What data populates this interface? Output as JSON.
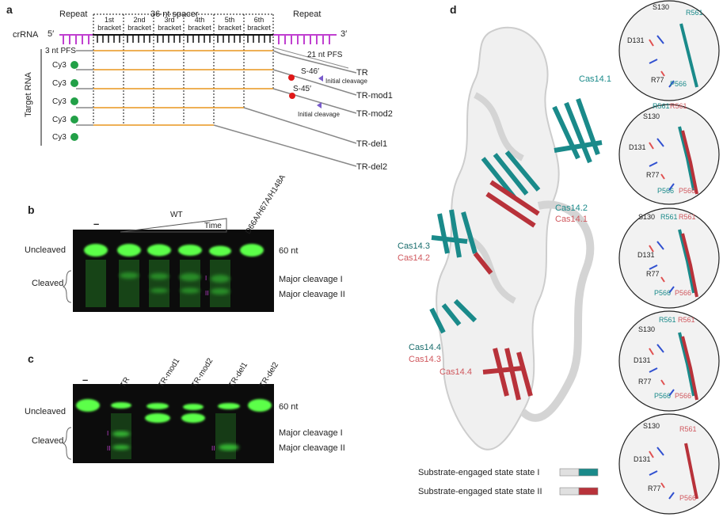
{
  "panel_labels": {
    "a": "a",
    "b": "b",
    "c": "c",
    "d": "d"
  },
  "panel_a": {
    "repeat_left": "Repeat",
    "spacer": "36 nt spacer",
    "repeat_right": "Repeat",
    "brackets": [
      "1st\nbracket",
      "2nd\nbracket",
      "3rd\nbracket",
      "4th\nbracket",
      "5th\nbracket",
      "6th\nbracket"
    ],
    "crrna_label": "crRNA",
    "five_prime": "5′",
    "three_prime": "3′",
    "pfs3": "3 nt PFS",
    "pfs21": "21 nt PFS",
    "target_rna": "Target RNA",
    "cy3": [
      "Cy3",
      "Cy3",
      "Cy3",
      "Cy3",
      "Cy3"
    ],
    "targets": [
      "TR",
      "TR-mod1",
      "TR-mod2",
      "TR-del1",
      "TR-del2"
    ],
    "s46": "S-46′",
    "s45": "S-45′",
    "initial_cleavage_1": "Initial cleavage",
    "initial_cleavage_2": "Initial cleavage"
  },
  "panel_b": {
    "lane_dash": "–",
    "wt": "WT",
    "time": "Time",
    "mutant": "D66A/H67A/H148A",
    "uncleaved": "Uncleaved",
    "cleaved": "Cleaved",
    "nt60": "60 nt",
    "major1": "Major cleavage I",
    "major2": "Major cleavage II",
    "roman1": "I",
    "roman2": "II"
  },
  "panel_c": {
    "lane_dash": "–",
    "lanes": [
      "TR",
      "TR-mod1",
      "TR-mod2",
      "TR-del1",
      "TR-del2"
    ],
    "uncleaved": "Uncleaved",
    "cleaved": "Cleaved",
    "nt60": "60 nt",
    "major1": "Major cleavage I",
    "major2": "Major cleavage II",
    "roman1a": "I",
    "roman2a": "II",
    "roman2b": "II"
  },
  "panel_d": {
    "cas14_1_top": "Cas14.1",
    "cas14_2_teal": "Cas14.2",
    "cas14_1_red": "Cas14.1",
    "cas14_3_teal": "Cas14.3",
    "cas14_2_red": "Cas14.2",
    "cas14_4_teal": "Cas14.4",
    "cas14_3_red": "Cas14.3",
    "cas14_4_red": "Cas14.4",
    "legend1": "Substrate-engaged state state I",
    "legend2": "Substrate-engaged state state II",
    "insets": [
      {
        "s130": "S130",
        "d131": "D131",
        "r77": "R77",
        "r561": "R561",
        "p566": "P566"
      },
      {
        "s130": "S130",
        "d131": "D131",
        "r77": "R77",
        "r561a": "R561",
        "r561b": "R561",
        "p566a": "P566",
        "p566b": "P566"
      },
      {
        "s130": "S130",
        "d131": "D131",
        "r77": "R77",
        "r561a": "R561",
        "r561b": "R561",
        "p566a": "P566",
        "p566b": "P566"
      },
      {
        "s130": "S130",
        "d131": "D131",
        "r77": "R77",
        "r561a": "R561",
        "r561b": "R561",
        "p566a": "P566",
        "p566b": "P566"
      },
      {
        "s130": "S130",
        "d131": "D131",
        "r77": "R77",
        "r561": "R561",
        "p566": "P566"
      }
    ]
  },
  "colors": {
    "teal": "#1a8a8a",
    "red": "#b8323a",
    "magenta": "#c040d0",
    "orange": "#e8951e",
    "green": "#22a047",
    "gel_green": "#5cff4a"
  }
}
